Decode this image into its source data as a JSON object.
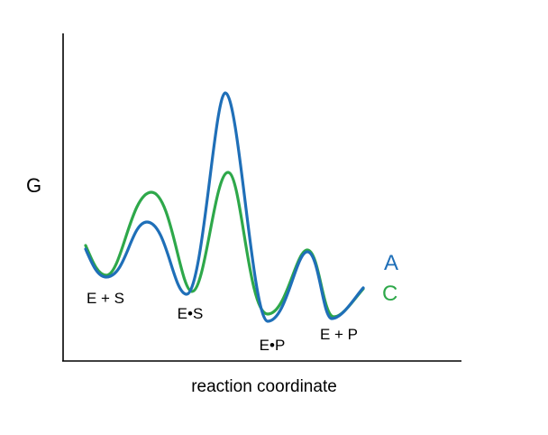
{
  "axes": {
    "ylabel": "G",
    "xlabel": "reaction coordinate"
  },
  "states": {
    "es_free": "E + S",
    "es_complex": "E•S",
    "ep_complex": "E•P",
    "ep_free": "E + P"
  },
  "curves": {
    "A": {
      "label": "A",
      "color": "#1f6fb8"
    },
    "C": {
      "label": "C",
      "color": "#2ea84a"
    }
  },
  "colors": {
    "axis": "#000000",
    "text": "#000000"
  }
}
